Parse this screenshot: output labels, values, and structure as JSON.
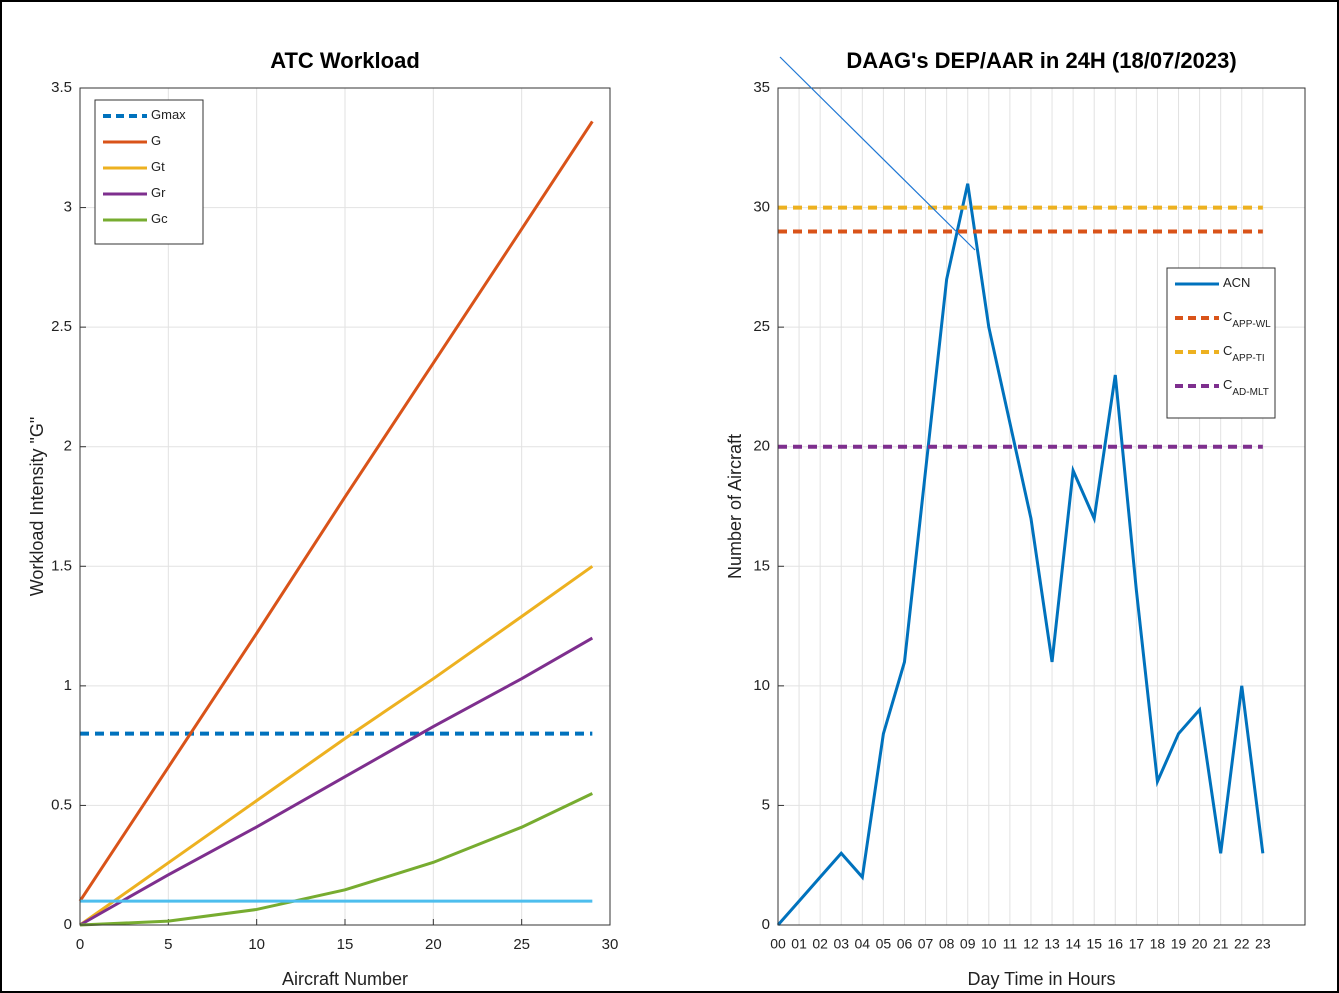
{
  "chart_data": [
    {
      "type": "line",
      "title": "ATC Workload",
      "x_label": "Aircraft Number",
      "y_label": "Workload Intensity \"G\"",
      "x": [
        0,
        5,
        10,
        15,
        20,
        25,
        29
      ],
      "series": [
        {
          "name": "Gmax",
          "color": "#0072BD",
          "dashed": true,
          "values": [
            0.8,
            0.8,
            0.8,
            0.8,
            0.8,
            0.8,
            0.8
          ]
        },
        {
          "name": "G",
          "color": "#D95319",
          "values": [
            0.1,
            0.66,
            1.22,
            1.79,
            2.35,
            2.91,
            3.36
          ]
        },
        {
          "name": "Gt",
          "color": "#EDB120",
          "values": [
            0,
            0.26,
            0.52,
            0.78,
            1.03,
            1.29,
            1.5
          ]
        },
        {
          "name": "Gr",
          "color": "#7E2F8E",
          "values": [
            0,
            0.21,
            0.41,
            0.62,
            0.83,
            1.03,
            1.2
          ]
        },
        {
          "name": "Gc",
          "color": "#77AC30",
          "values": [
            0,
            0.016,
            0.065,
            0.147,
            0.262,
            0.409,
            0.55
          ]
        },
        {
          "color": "#4DBEEE",
          "values": [
            0.1,
            0.1,
            0.1,
            0.1,
            0.1,
            0.1,
            0.1
          ]
        }
      ],
      "xlim": [
        0,
        30
      ],
      "xticks": [
        0,
        5,
        10,
        15,
        20,
        25,
        30
      ],
      "ylim": [
        0,
        3.5
      ],
      "yticks": [
        0,
        0.5,
        1,
        1.5,
        2,
        2.5,
        3,
        3.5
      ],
      "grid": true,
      "legend": "upper left"
    },
    {
      "type": "line",
      "title": "DAAG's DEP/AAR in 24H (18/07/2023)",
      "x_label": "Day Time in Hours",
      "y_label": "Number of Aircraft",
      "categories": [
        "00",
        "01",
        "02",
        "03",
        "04",
        "05",
        "06",
        "07",
        "08",
        "09",
        "10",
        "11",
        "12",
        "13",
        "14",
        "15",
        "16",
        "17",
        "18",
        "19",
        "20",
        "21",
        "22",
        "23"
      ],
      "series": [
        {
          "name": "ACN",
          "color": "#0072BD",
          "values": [
            0,
            1,
            2,
            3,
            2,
            8,
            11,
            19,
            27,
            31,
            25,
            21,
            17,
            11,
            19,
            17,
            23,
            14,
            6,
            8,
            9,
            3,
            10,
            3
          ]
        },
        {
          "name": "C",
          "name_sub": "APP-WL",
          "color": "#D95319",
          "dashed": true,
          "values": [
            29,
            29,
            29,
            29,
            29,
            29,
            29,
            29,
            29,
            29,
            29,
            29,
            29,
            29,
            29,
            29,
            29,
            29,
            29,
            29,
            29,
            29,
            29,
            29
          ]
        },
        {
          "name": "C",
          "name_sub": "APP-TI",
          "color": "#EDB120",
          "dashed": true,
          "values": [
            30,
            30,
            30,
            30,
            30,
            30,
            30,
            30,
            30,
            30,
            30,
            30,
            30,
            30,
            30,
            30,
            30,
            30,
            30,
            30,
            30,
            30,
            30,
            30
          ]
        },
        {
          "name": "C",
          "name_sub": "AD-MLT",
          "color": "#7E2F8E",
          "dashed": true,
          "values": [
            20,
            20,
            20,
            20,
            20,
            20,
            20,
            20,
            20,
            20,
            20,
            20,
            20,
            20,
            20,
            20,
            20,
            20,
            20,
            20,
            20,
            20,
            20,
            20
          ]
        }
      ],
      "ylim": [
        0,
        35
      ],
      "yticks": [
        0,
        5,
        10,
        15,
        20,
        25,
        30,
        35
      ],
      "grid": true,
      "legend": "right"
    }
  ]
}
